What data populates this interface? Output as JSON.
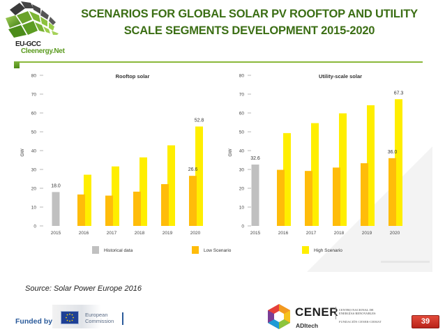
{
  "header": {
    "logo_line1": "EU-GCC",
    "logo_line2": "Cleenergy.Net",
    "title": "SCENARIOS FOR GLOBAL SOLAR PV ROOFTOP AND UTILITY SCALE SEGMENTS DEVELOPMENT 2015-2020"
  },
  "colors": {
    "title_green": "#3b6e14",
    "historical": "#c0c0c0",
    "low": "#ffbc0a",
    "high": "#ffee00"
  },
  "chart_data": [
    {
      "type": "bar",
      "title": "Rooftop solar",
      "xlabel": "",
      "ylabel": "GW",
      "ylim": [
        0,
        80
      ],
      "yticks": [
        0,
        10,
        20,
        30,
        40,
        50,
        60,
        70,
        80
      ],
      "categories": [
        "2015",
        "2016",
        "2017",
        "2018",
        "2019",
        "2020"
      ],
      "series": [
        {
          "name": "Historical data",
          "values": [
            18.0,
            null,
            null,
            null,
            null,
            null
          ]
        },
        {
          "name": "Low Scenario",
          "values": [
            null,
            16.7,
            16.1,
            18.2,
            22.2,
            26.6
          ]
        },
        {
          "name": "High Scenario",
          "values": [
            null,
            27.2,
            31.6,
            36.4,
            42.8,
            52.8
          ]
        }
      ],
      "data_labels": [
        {
          "category": "2015",
          "series": "Historical data",
          "text": "18.0"
        },
        {
          "category": "2020",
          "series": "Low Scenario",
          "text": "26.6"
        },
        {
          "category": "2020",
          "series": "High Scenario",
          "text": "52.8"
        }
      ],
      "grid": false
    },
    {
      "type": "bar",
      "title": "Utility-scale solar",
      "xlabel": "",
      "ylabel": "GW",
      "ylim": [
        0,
        80
      ],
      "yticks": [
        0,
        10,
        20,
        30,
        40,
        50,
        60,
        70,
        80
      ],
      "categories": [
        "2015",
        "2016",
        "2017",
        "2018",
        "2019",
        "2020"
      ],
      "series": [
        {
          "name": "Historical data",
          "values": [
            32.6,
            null,
            null,
            null,
            null,
            null
          ]
        },
        {
          "name": "Low Scenario",
          "values": [
            null,
            29.8,
            29.2,
            31.0,
            33.3,
            36.0
          ]
        },
        {
          "name": "High Scenario",
          "values": [
            null,
            49.3,
            54.6,
            59.8,
            64.1,
            67.3
          ]
        }
      ],
      "data_labels": [
        {
          "category": "2015",
          "series": "Historical data",
          "text": "32.6"
        },
        {
          "category": "2020",
          "series": "Low Scenario",
          "text": "36.0"
        },
        {
          "category": "2020",
          "series": "High Scenario",
          "text": "67.3"
        }
      ],
      "grid": false
    }
  ],
  "legend": {
    "placement": "bottom",
    "items": [
      {
        "label": "Historical data",
        "color": "#c0c0c0"
      },
      {
        "label": "Low Scenario",
        "color": "#ffbc0a"
      },
      {
        "label": "High Scenario",
        "color": "#ffee00"
      }
    ]
  },
  "footer": {
    "source": "Source: Solar Power Europe 2016",
    "funded_by": "Funded by",
    "ec_line1": "European",
    "ec_line2": "Commission",
    "cener_name": "CENER",
    "cener_sub": "ADItech",
    "cener_full1": "CENTRO NACIONAL DE",
    "cener_full2": "ENERGÍAS RENOVABLES",
    "cener_fund": "FUNDACIÓN CENER-CIEMAT",
    "page_number": "39"
  }
}
